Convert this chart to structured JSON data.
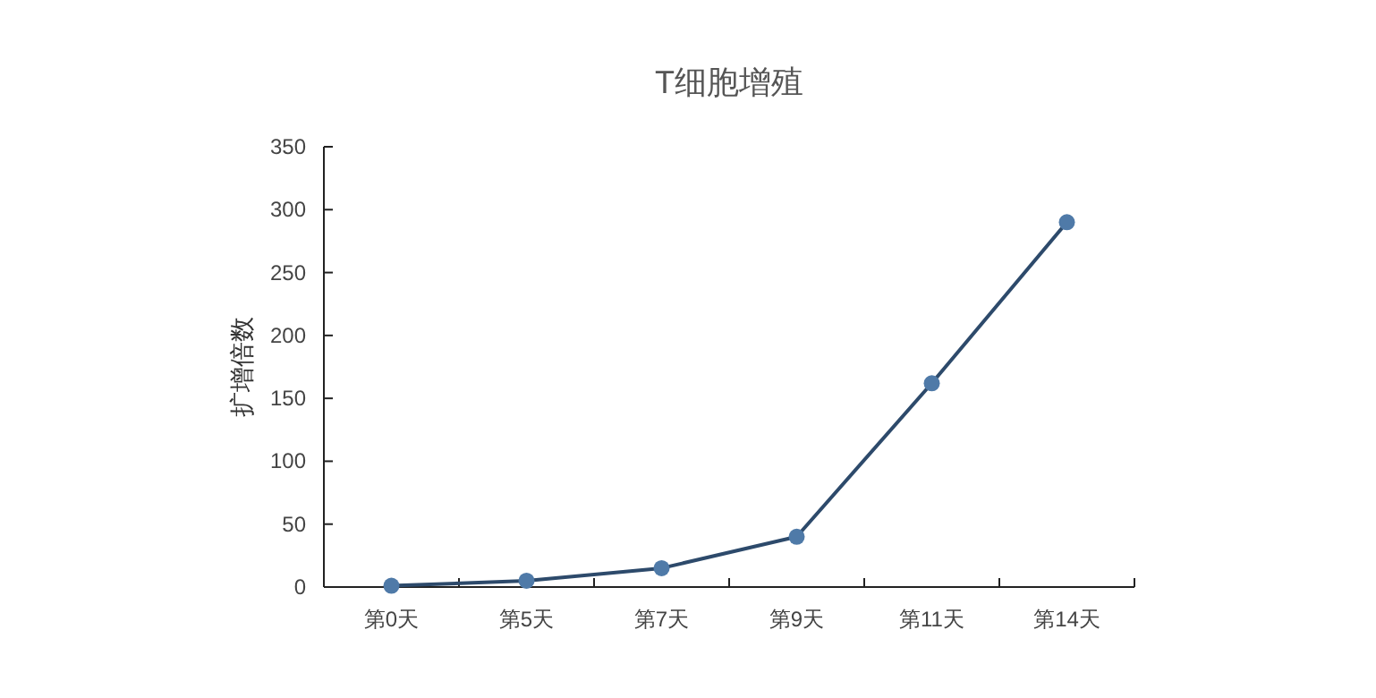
{
  "chart_data": {
    "type": "line",
    "title": "T细胞增殖",
    "ylabel": "扩增倍数",
    "categories": [
      "第0天",
      "第5天",
      "第7天",
      "第9天",
      "第11天",
      "第14天"
    ],
    "series": [
      {
        "color": "#4f7aa8",
        "values": [
          1,
          5,
          15,
          40,
          162,
          290
        ]
      }
    ],
    "ylim": [
      0,
      350
    ],
    "yticks": [
      0,
      50,
      100,
      150,
      200,
      250,
      300,
      350
    ],
    "grid": false,
    "marker": "circle",
    "line_style": "solid"
  }
}
